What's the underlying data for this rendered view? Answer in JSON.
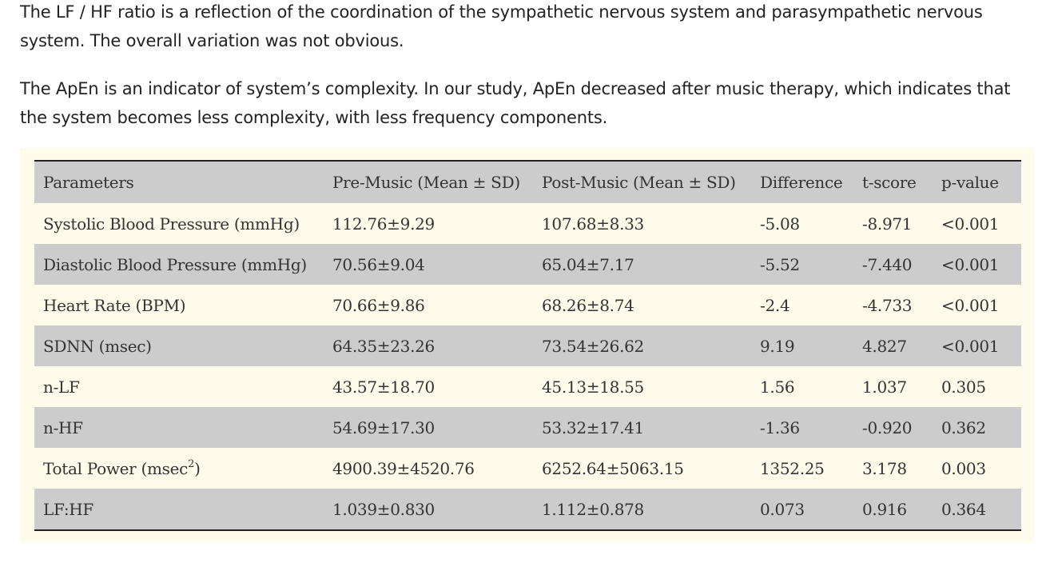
{
  "paragraphs": [
    "The LF / HF ratio is a reflection of the coordination of the sympathetic nervous system and parasympathetic nervous system. The overall variation was not obvious.",
    "The ApEn is an indicator of system’s complexity. In our study, ApEn decreased after music therapy, which indicates that the system becomes less complexity, with less frequency components."
  ],
  "table": {
    "headers": [
      "Parameters",
      "Pre-Music (Mean ± SD)",
      "Post-Music (Mean ± SD)",
      "Difference",
      "t-score",
      "p-value"
    ],
    "rows": [
      [
        "Systolic Blood Pressure (mmHg)",
        "112.76±9.29",
        "107.68±8.33",
        "-5.08",
        "-8.971",
        "<0.001"
      ],
      [
        "Diastolic Blood Pressure (mmHg)",
        "70.56±9.04",
        "65.04±7.17",
        "-5.52",
        "-7.440",
        "<0.001"
      ],
      [
        "Heart Rate (BPM)",
        "70.66±9.86",
        "68.26±8.74",
        "-2.4",
        "-4.733",
        "<0.001"
      ],
      [
        "SDNN (msec)",
        "64.35±23.26",
        "73.54±26.62",
        "9.19",
        "4.827",
        "<0.001"
      ],
      [
        "n-LF",
        "43.57±18.70",
        "45.13±18.55",
        "1.56",
        "1.037",
        "0.305"
      ],
      [
        "n-HF",
        "54.69±17.30",
        "53.32±17.41",
        "-1.36",
        "-0.920",
        "0.362"
      ],
      [
        "Total Power (msec)",
        "4900.39±4520.76",
        "6252.64±5063.15",
        "1352.25",
        "3.178",
        "0.003"
      ],
      [
        "LF:HF",
        "1.039±0.830",
        "1.112±0.878",
        "0.073",
        "0.916",
        "0.364"
      ]
    ],
    "total_power_label": {
      "prefix": "Total Power (msec",
      "superscript": "2",
      "suffix": ")"
    }
  },
  "colors": {
    "table_background": "#fffbea",
    "shaded_row": "#cccccc",
    "text": "#222222"
  }
}
